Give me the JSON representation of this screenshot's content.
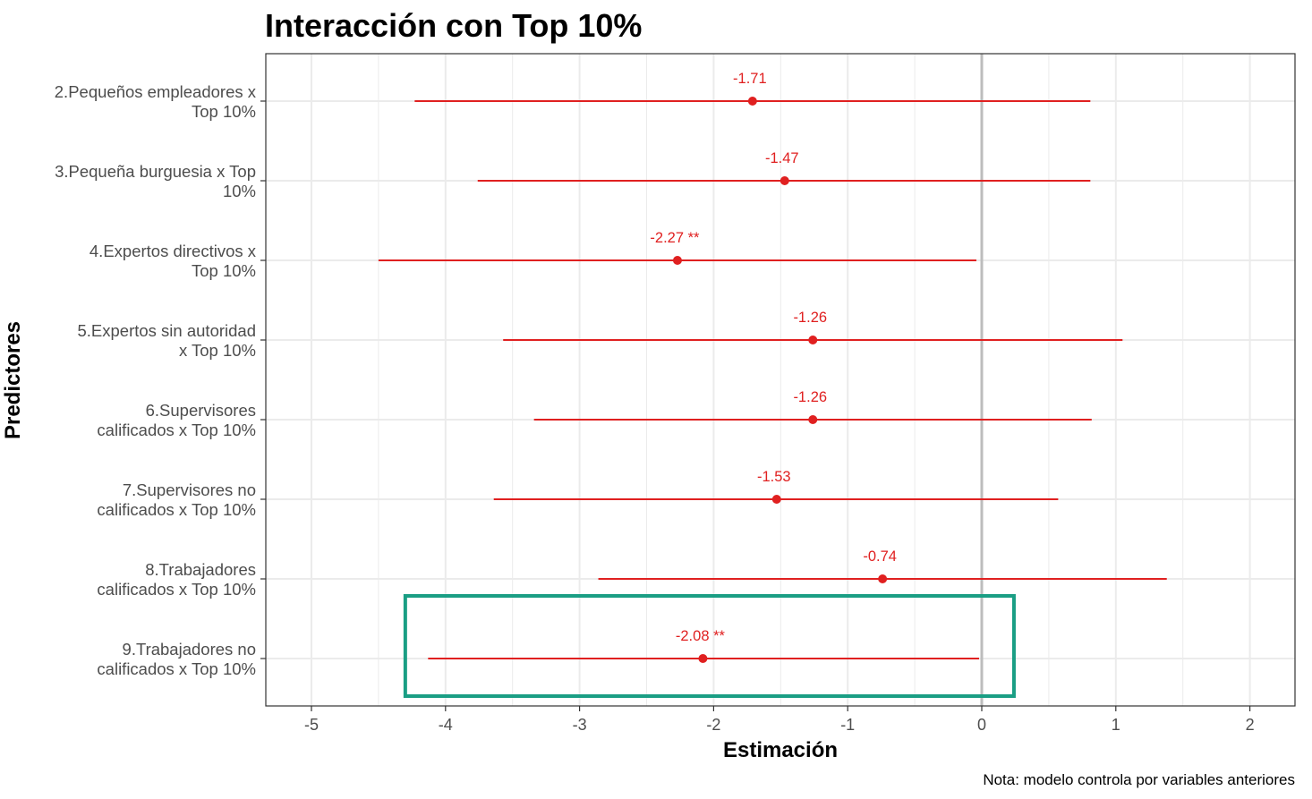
{
  "chart_data": {
    "type": "scatter",
    "subtype": "coefficient-plot-with-error-bars",
    "title": "Interacción con Top 10%",
    "xlabel": "Estimación",
    "ylabel": "Predictores",
    "note": "Nota: modelo controla por variables anteriores",
    "xlim": [
      -5.33,
      2.35
    ],
    "xticks": [
      -5,
      -4,
      -3,
      -2,
      -1,
      0,
      1,
      2
    ],
    "grid": true,
    "reference_line_x": 0,
    "colors": {
      "point": "#e02020",
      "reference_line": "#bdbdbd",
      "grid": "#ebebeb",
      "highlight_box": "#1a9e84"
    },
    "categories": [
      [
        "2.Pequeños empleadores x",
        "Top 10%"
      ],
      [
        "3.Pequeña burguesia x Top",
        "10%"
      ],
      [
        "4.Expertos directivos x",
        "Top 10%"
      ],
      [
        "5.Expertos sin autoridad",
        "x Top 10%"
      ],
      [
        "6.Supervisores",
        "calificados x Top 10%"
      ],
      [
        "7.Supervisores no",
        "calificados x Top 10%"
      ],
      [
        "8.Trabajadores",
        "calificados x Top 10%"
      ],
      [
        "9.Trabajadores no",
        "calificados x Top 10%"
      ]
    ],
    "estimates": [
      -1.71,
      -1.47,
      -2.27,
      -1.26,
      -1.26,
      -1.53,
      -0.74,
      -2.08
    ],
    "ci_low": [
      -4.23,
      -3.76,
      -4.5,
      -3.57,
      -3.34,
      -3.64,
      -2.86,
      -4.13
    ],
    "ci_high": [
      0.81,
      0.81,
      -0.04,
      1.05,
      0.82,
      0.57,
      1.38,
      -0.02
    ],
    "labels": [
      "-1.71",
      "-1.47",
      "-2.27 **",
      "-1.26",
      "-1.26",
      "-1.53",
      "-0.74",
      "-2.08 **"
    ],
    "highlight": {
      "category_index": 7,
      "x_range": [
        -4.3,
        0.24
      ]
    }
  }
}
